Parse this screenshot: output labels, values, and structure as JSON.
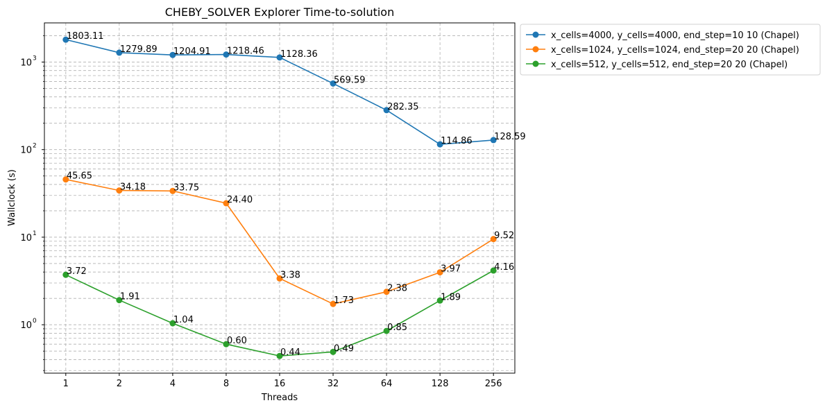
{
  "chart_data": {
    "type": "line",
    "title": "CHEBY_SOLVER Explorer Time-to-solution",
    "xlabel": "Threads",
    "ylabel": "Wallclock (s)",
    "x_scale": "log2",
    "y_scale": "log10",
    "ylim": [
      0.28,
      2800
    ],
    "x": [
      1,
      2,
      4,
      8,
      16,
      32,
      64,
      128,
      256
    ],
    "x_tick_labels": [
      "1",
      "2",
      "4",
      "8",
      "16",
      "32",
      "64",
      "128",
      "256"
    ],
    "y_tick_labels": [
      {
        "value": 1,
        "label": "10"
      },
      {
        "value": 10,
        "label": "10"
      },
      {
        "value": 100,
        "label": "10"
      },
      {
        "value": 1000,
        "label": "10"
      }
    ],
    "y_tick_exponents": [
      "0",
      "1",
      "2",
      "3"
    ],
    "grid": true,
    "legend_position": "outside-top-right",
    "series": [
      {
        "name": "x_cells=4000, y_cells=4000, end_step=10 10 (Chapel)",
        "color": "#1f77b4",
        "values": [
          1803.11,
          1279.89,
          1204.91,
          1218.46,
          1128.36,
          569.59,
          282.35,
          114.86,
          128.59
        ],
        "labels": [
          "1803.11",
          "1279.89",
          "1204.91",
          "1218.46",
          "1128.36",
          "569.59",
          "282.35",
          "114.86",
          "128.59"
        ]
      },
      {
        "name": "x_cells=1024, y_cells=1024, end_step=20 20 (Chapel)",
        "color": "#ff7f0e",
        "values": [
          45.65,
          34.18,
          33.75,
          24.4,
          3.38,
          1.73,
          2.38,
          3.97,
          9.52
        ],
        "labels": [
          "45.65",
          "34.18",
          "33.75",
          "24.40",
          "3.38",
          "1.73",
          "2.38",
          "3.97",
          "9.52"
        ]
      },
      {
        "name": "x_cells=512, y_cells=512, end_step=20 20 (Chapel)",
        "color": "#2ca02c",
        "values": [
          3.72,
          1.91,
          1.04,
          0.6,
          0.44,
          0.49,
          0.85,
          1.89,
          4.16
        ],
        "labels": [
          "3.72",
          "1.91",
          "1.04",
          "0.60",
          "0.44",
          "0.49",
          "0.85",
          "1.89",
          "4.16"
        ]
      }
    ]
  }
}
